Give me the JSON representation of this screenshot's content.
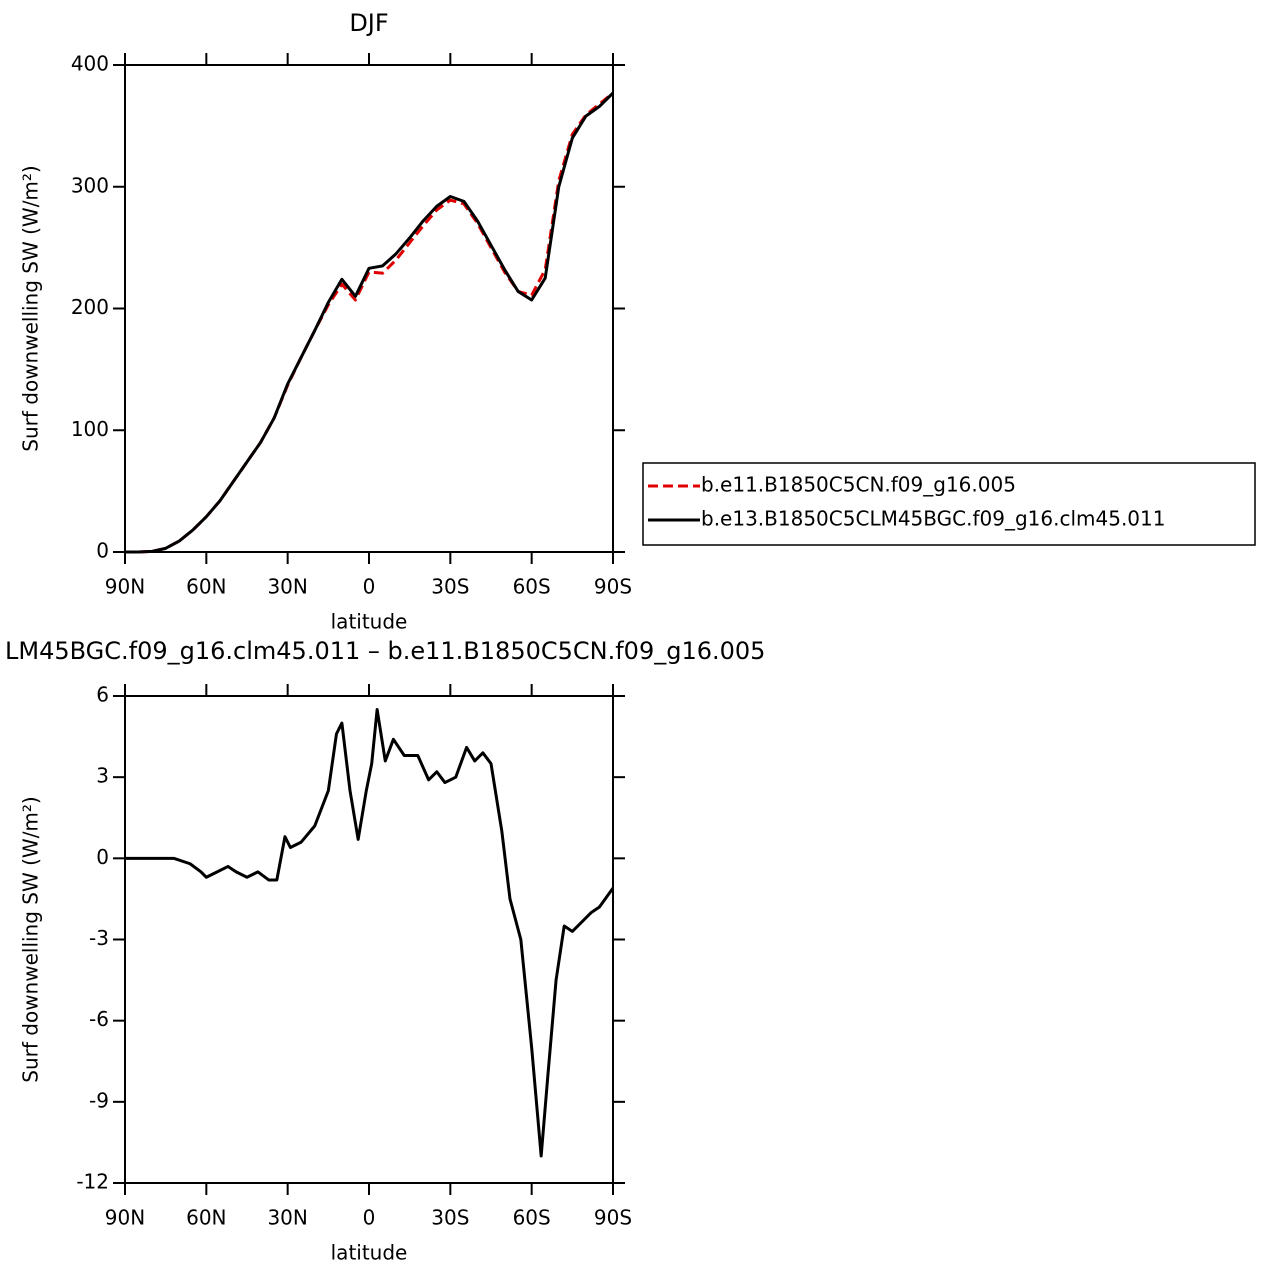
{
  "chart_data": [
    {
      "type": "line",
      "title": "DJF",
      "xlabel": "latitude",
      "ylabel": "Surf downwelling SW (W/m²)",
      "x": [
        90,
        85,
        80,
        75,
        70,
        65,
        60,
        55,
        50,
        45,
        40,
        35,
        30,
        25,
        20,
        15,
        10,
        5,
        0,
        -5,
        -10,
        -15,
        -20,
        -25,
        -30,
        -35,
        -40,
        -45,
        -50,
        -55,
        -60,
        -65,
        -70,
        -75,
        -80,
        -85,
        -90
      ],
      "series": [
        {
          "name": "b.e11.B1850C5CN.f09_g16.005",
          "color": "#e00000",
          "linestyle": "dashed",
          "values": [
            0,
            0,
            0.5,
            3,
            9,
            18,
            29,
            42,
            58,
            74,
            90,
            110,
            137,
            160,
            182,
            203,
            220,
            207,
            230,
            229,
            240,
            254,
            268,
            281,
            289,
            286,
            270,
            250,
            230,
            214,
            211,
            232,
            305,
            343,
            359,
            368,
            377
          ]
        },
        {
          "name": "b.e13.B1850C5CLM45BGC.f09_g16.clm45.011",
          "color": "#000000",
          "linestyle": "solid",
          "values": [
            0,
            0,
            0.5,
            3,
            9,
            18,
            29,
            42,
            58,
            74,
            90,
            110,
            138,
            160,
            182,
            205,
            224,
            210,
            233,
            235,
            245,
            258,
            272,
            284,
            292,
            288,
            272,
            252,
            232,
            214,
            207,
            225,
            300,
            340,
            358,
            366,
            377
          ]
        }
      ],
      "xlim": [
        90,
        -90
      ],
      "xticks": [
        {
          "value": 90,
          "label": "90N"
        },
        {
          "value": 60,
          "label": "60N"
        },
        {
          "value": 30,
          "label": "30N"
        },
        0,
        {
          "value": -30,
          "label": "30S"
        },
        {
          "value": -60,
          "label": "60S"
        },
        {
          "value": -90,
          "label": "90S"
        }
      ],
      "ylim": [
        0,
        400
      ],
      "yticks": [
        0,
        100,
        200,
        300,
        400
      ],
      "legend": "right"
    },
    {
      "type": "line",
      "title": "LM45BGC.f09_g16.clm45.011 – b.e11.B1850C5CN.f09_g16.005",
      "xlabel": "latitude",
      "ylabel": "Surf downwelling SW (W/m²)",
      "x": [
        90,
        80,
        72,
        66,
        62,
        60,
        56,
        52,
        49,
        45,
        41,
        37,
        34,
        31,
        29,
        25,
        20,
        15,
        12,
        10,
        7,
        4,
        1,
        -1,
        -3,
        -6,
        -9,
        -13,
        -18,
        -22,
        -25,
        -28,
        -32,
        -36,
        -39,
        -42,
        -45,
        -49,
        -52,
        -56,
        -60,
        -63.5,
        -66,
        -69,
        -72,
        -75,
        -78,
        -82,
        -85,
        -90
      ],
      "series": [
        {
          "color": "#000000",
          "linestyle": "solid",
          "values": [
            0,
            0,
            0,
            -0.2,
            -0.5,
            -0.7,
            -0.5,
            -0.3,
            -0.5,
            -0.7,
            -0.5,
            -0.8,
            -0.8,
            0.8,
            0.4,
            0.6,
            1.2,
            2.5,
            4.6,
            5.0,
            2.5,
            0.7,
            2.5,
            3.5,
            5.5,
            3.6,
            4.4,
            3.8,
            3.8,
            2.9,
            3.2,
            2.8,
            3.0,
            4.1,
            3.6,
            3.9,
            3.5,
            1.0,
            -1.5,
            -3,
            -7,
            -11,
            -8,
            -4.5,
            -2.5,
            -2.7,
            -2.4,
            -2.0,
            -1.8,
            -1.1
          ]
        }
      ],
      "xlim": [
        90,
        -90
      ],
      "xticks": [
        {
          "value": 90,
          "label": "90N"
        },
        {
          "value": 60,
          "label": "60N"
        },
        {
          "value": 30,
          "label": "30N"
        },
        0,
        {
          "value": -30,
          "label": "30S"
        },
        {
          "value": -60,
          "label": "60S"
        },
        {
          "value": -90,
          "label": "90S"
        }
      ],
      "ylim": [
        -12,
        6
      ],
      "yticks": [
        -12,
        -9,
        -6,
        -3,
        0,
        3,
        6
      ]
    }
  ]
}
